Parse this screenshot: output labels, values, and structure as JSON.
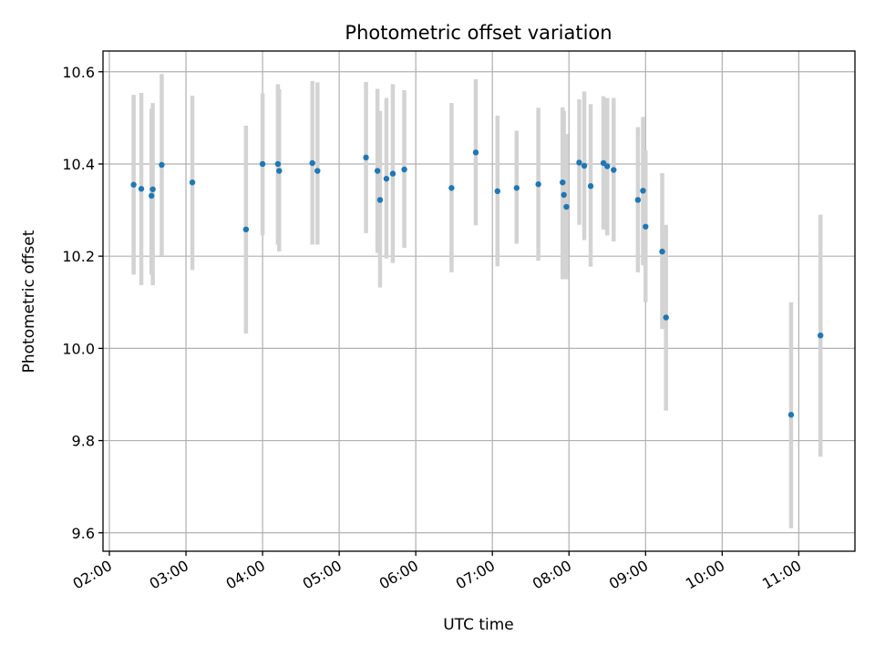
{
  "chart_data": {
    "type": "scatter",
    "title": "Photometric offset variation",
    "xlabel": "UTC time",
    "ylabel": "Photometric offset",
    "grid": true,
    "x_ticks": [
      "02:00",
      "03:00",
      "04:00",
      "05:00",
      "06:00",
      "07:00",
      "08:00",
      "09:00",
      "10:00",
      "11:00"
    ],
    "x_range": [
      "01:55",
      "11:44"
    ],
    "y_ticks": [
      "9.6",
      "9.8",
      "10.0",
      "10.2",
      "10.4",
      "10.6"
    ],
    "ylim": [
      9.56,
      10.645
    ],
    "colors": {
      "point": "#1f77b4",
      "error_bar": "#d3d3d3"
    },
    "points": [
      {
        "x": "02:19",
        "y": 10.355,
        "err_low": 10.16,
        "err_high": 10.55
      },
      {
        "x": "02:25",
        "y": 10.346,
        "err_low": 10.137,
        "err_high": 10.554
      },
      {
        "x": "02:33",
        "y": 10.331,
        "err_low": 10.16,
        "err_high": 10.52
      },
      {
        "x": "02:34",
        "y": 10.345,
        "err_low": 10.137,
        "err_high": 10.532
      },
      {
        "x": "02:41",
        "y": 10.398,
        "err_low": 10.2,
        "err_high": 10.595
      },
      {
        "x": "03:05",
        "y": 10.36,
        "err_low": 10.17,
        "err_high": 10.548
      },
      {
        "x": "03:47",
        "y": 10.258,
        "err_low": 10.032,
        "err_high": 10.483
      },
      {
        "x": "04:00",
        "y": 10.4,
        "err_low": 10.245,
        "err_high": 10.553
      },
      {
        "x": "04:12",
        "y": 10.4,
        "err_low": 10.225,
        "err_high": 10.573
      },
      {
        "x": "04:13",
        "y": 10.385,
        "err_low": 10.21,
        "err_high": 10.562
      },
      {
        "x": "04:39",
        "y": 10.402,
        "err_low": 10.225,
        "err_high": 10.58
      },
      {
        "x": "04:43",
        "y": 10.385,
        "err_low": 10.225,
        "err_high": 10.577
      },
      {
        "x": "05:21",
        "y": 10.414,
        "err_low": 10.25,
        "err_high": 10.578
      },
      {
        "x": "05:30",
        "y": 10.385,
        "err_low": 10.207,
        "err_high": 10.563
      },
      {
        "x": "05:32",
        "y": 10.322,
        "err_low": 10.132,
        "err_high": 10.515
      },
      {
        "x": "05:37",
        "y": 10.368,
        "err_low": 10.195,
        "err_high": 10.543
      },
      {
        "x": "05:42",
        "y": 10.379,
        "err_low": 10.185,
        "err_high": 10.573
      },
      {
        "x": "05:51",
        "y": 10.388,
        "err_low": 10.218,
        "err_high": 10.56
      },
      {
        "x": "06:28",
        "y": 10.348,
        "err_low": 10.165,
        "err_high": 10.532
      },
      {
        "x": "06:47",
        "y": 10.425,
        "err_low": 10.267,
        "err_high": 10.584
      },
      {
        "x": "07:04",
        "y": 10.341,
        "err_low": 10.178,
        "err_high": 10.505
      },
      {
        "x": "07:19",
        "y": 10.348,
        "err_low": 10.227,
        "err_high": 10.472
      },
      {
        "x": "07:36",
        "y": 10.356,
        "err_low": 10.19,
        "err_high": 10.522
      },
      {
        "x": "07:55",
        "y": 10.36,
        "err_low": 10.15,
        "err_high": 10.523
      },
      {
        "x": "07:56",
        "y": 10.333,
        "err_low": 10.163,
        "err_high": 10.515
      },
      {
        "x": "07:58",
        "y": 10.307,
        "err_low": 10.15,
        "err_high": 10.465
      },
      {
        "x": "08:08",
        "y": 10.403,
        "err_low": 10.268,
        "err_high": 10.54
      },
      {
        "x": "08:12",
        "y": 10.396,
        "err_low": 10.235,
        "err_high": 10.557
      },
      {
        "x": "08:17",
        "y": 10.352,
        "err_low": 10.177,
        "err_high": 10.53
      },
      {
        "x": "08:27",
        "y": 10.402,
        "err_low": 10.258,
        "err_high": 10.547
      },
      {
        "x": "08:30",
        "y": 10.395,
        "err_low": 10.245,
        "err_high": 10.543
      },
      {
        "x": "08:35",
        "y": 10.387,
        "err_low": 10.232,
        "err_high": 10.543
      },
      {
        "x": "08:54",
        "y": 10.322,
        "err_low": 10.165,
        "err_high": 10.48
      },
      {
        "x": "08:58",
        "y": 10.342,
        "err_low": 10.18,
        "err_high": 10.502
      },
      {
        "x": "09:00",
        "y": 10.264,
        "err_low": 10.1,
        "err_high": 10.43
      },
      {
        "x": "09:13",
        "y": 10.21,
        "err_low": 10.042,
        "err_high": 10.38
      },
      {
        "x": "09:16",
        "y": 10.067,
        "err_low": 9.865,
        "err_high": 10.268
      },
      {
        "x": "10:54",
        "y": 9.856,
        "err_low": 9.61,
        "err_high": 10.1
      },
      {
        "x": "11:17",
        "y": 10.028,
        "err_low": 9.765,
        "err_high": 10.29
      }
    ]
  }
}
